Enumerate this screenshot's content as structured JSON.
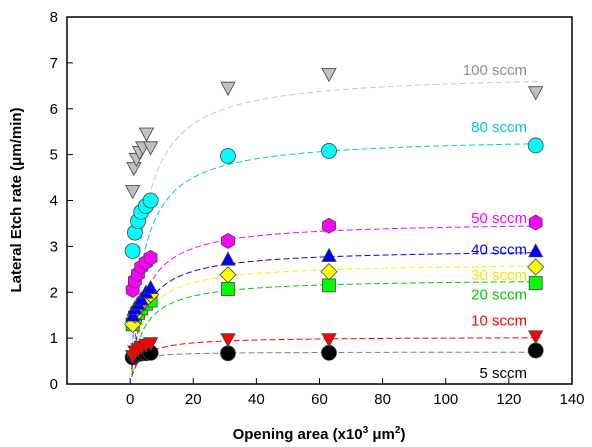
{
  "chart_data": {
    "type": "scatter",
    "xlabel": "Opening area (x10",
    "xlabel_sup": "3",
    "xlabel_unit": " μm",
    "xlabel_unit_sup": "2",
    "xlabel_close": ")",
    "ylabel": "Lateral Etch rate (μm/min)",
    "xlim": [
      -20,
      140
    ],
    "ylim": [
      0,
      8
    ],
    "xticks": [
      "0",
      "20",
      "40",
      "60",
      "80",
      "100",
      "120",
      "140"
    ],
    "yticks": [
      "0",
      "1",
      "2",
      "3",
      "4",
      "5",
      "6",
      "7",
      "8"
    ],
    "grid": false,
    "fit_lines": "dashed",
    "series": [
      {
        "name": "5 sccm",
        "color": "#000000",
        "fit_color": "#808080",
        "marker": "circle",
        "plateau": 0.7,
        "k": 1.2,
        "x": [
          0.8,
          1.5,
          2.5,
          3.5,
          5,
          6.5,
          31,
          63,
          128.5
        ],
        "y": [
          0.58,
          0.62,
          0.65,
          0.66,
          0.67,
          0.68,
          0.67,
          0.68,
          0.73
        ]
      },
      {
        "name": "10 sccm",
        "color": "#ff0000",
        "fit_color": "#ff0000",
        "marker": "triangle-down",
        "plateau": 1.03,
        "k": 3,
        "x": [
          0.8,
          1.5,
          2.5,
          3.5,
          5,
          6.5,
          31,
          63,
          128.5
        ],
        "y": [
          0.6,
          0.7,
          0.75,
          0.8,
          0.85,
          0.88,
          0.97,
          0.97,
          1.03
        ]
      },
      {
        "name": "20 sccm",
        "color": "#00ff00",
        "fit_color": "#00cc00",
        "marker": "square",
        "plateau": 2.3,
        "k": 4,
        "x": [
          0.8,
          1.5,
          2.5,
          3.5,
          5,
          6.5,
          31,
          63,
          128.5
        ],
        "y": [
          1.3,
          1.45,
          1.55,
          1.65,
          1.75,
          1.82,
          2.07,
          2.15,
          2.2
        ]
      },
      {
        "name": "30 sccm",
        "color": "#ffff00",
        "fit_color": "#ffee00",
        "marker": "diamond",
        "plateau": 2.65,
        "k": 4,
        "x": [
          0.8,
          1.5,
          2.5,
          3.5,
          5,
          6.5,
          31,
          63,
          128.5
        ],
        "y": [
          1.3,
          1.5,
          1.65,
          1.75,
          1.85,
          1.95,
          2.38,
          2.45,
          2.55
        ]
      },
      {
        "name": "40 sccm",
        "color": "#0000ff",
        "fit_color": "#0000ff",
        "marker": "triangle-up",
        "plateau": 2.95,
        "k": 4,
        "x": [
          0.8,
          1.5,
          2.5,
          3.5,
          5,
          6.5,
          31,
          63,
          128.5
        ],
        "y": [
          1.5,
          1.65,
          1.75,
          1.85,
          2.0,
          2.1,
          2.72,
          2.8,
          2.9
        ]
      },
      {
        "name": "50 sccm",
        "color": "#ff00ff",
        "fit_color": "#ff00ff",
        "marker": "hexagon",
        "plateau": 3.55,
        "k": 4,
        "x": [
          0.8,
          1.5,
          2.5,
          3.5,
          5,
          6.5,
          31,
          63,
          128.5
        ],
        "y": [
          2.05,
          2.25,
          2.4,
          2.55,
          2.65,
          2.75,
          3.12,
          3.45,
          3.52
        ]
      },
      {
        "name": "80 sccm",
        "color": "#00ffff",
        "fit_color": "#00cccc",
        "marker": "circle",
        "plateau": 5.4,
        "k": 4,
        "x": [
          0.8,
          1.5,
          2.5,
          3.5,
          5,
          6.5,
          31,
          63,
          128.5
        ],
        "y": [
          2.9,
          3.3,
          3.55,
          3.75,
          3.88,
          4.0,
          4.97,
          5.08,
          5.2
        ]
      },
      {
        "name": "100 sccm",
        "color": "#c0c0c0",
        "fit_color": "#c8c8c8",
        "marker": "triangle-down",
        "plateau": 6.8,
        "k": 4,
        "x": [
          0.8,
          1.2,
          2,
          3,
          4,
          5.2,
          6.5,
          31,
          63,
          128.5
        ],
        "y": [
          4.2,
          4.7,
          4.9,
          5.05,
          5.15,
          5.45,
          5.15,
          6.45,
          6.75,
          6.35
        ]
      }
    ]
  }
}
